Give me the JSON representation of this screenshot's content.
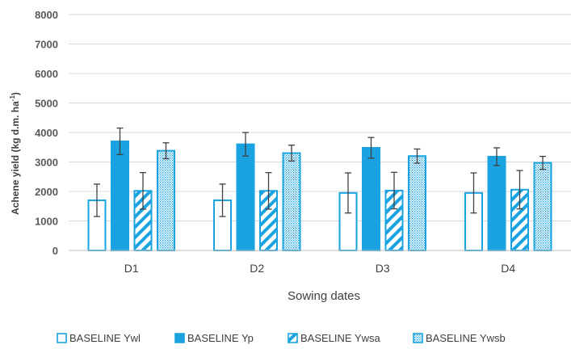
{
  "chart_data": {
    "type": "bar",
    "title": "",
    "xlabel": "Sowing dates",
    "ylabel_main": "Achene yield  (kg d.m. ha",
    "ylabel_sup": "-1",
    "ylabel_close": ")",
    "ylim": [
      0,
      8000
    ],
    "yticks": [
      "0",
      "1000",
      "2000",
      "3000",
      "4000",
      "5000",
      "6000",
      "7000",
      "8000"
    ],
    "grid": "horizontal",
    "legend_position": "bottom",
    "categories": [
      "D1",
      "D2",
      "D3",
      "D4"
    ],
    "series": [
      {
        "name": "BASELINE Ywl",
        "style": "outline",
        "color": "#1aa3e0",
        "values": [
          1700,
          1700,
          1950,
          1950
        ],
        "errors": [
          550,
          550,
          680,
          680
        ]
      },
      {
        "name": "BASELINE Yp",
        "style": "solid",
        "color": "#1aa3e0",
        "values": [
          3700,
          3600,
          3480,
          3180
        ],
        "errors": [
          450,
          400,
          350,
          300
        ]
      },
      {
        "name": "BASELINE Ywsa",
        "style": "hatch",
        "color": "#1aa3e0",
        "values": [
          2020,
          2020,
          2030,
          2060
        ],
        "errors": [
          620,
          620,
          620,
          650
        ]
      },
      {
        "name": "BASELINE Ywsb",
        "style": "dots",
        "color": "#1aa3e0",
        "values": [
          3380,
          3300,
          3200,
          2970
        ],
        "errors": [
          270,
          270,
          240,
          220
        ]
      }
    ]
  }
}
